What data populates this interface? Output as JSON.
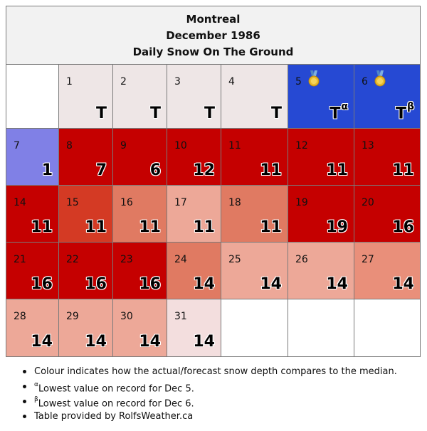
{
  "header": {
    "city": "Montreal",
    "month": "December 1986",
    "subtitle": "Daily Snow On The Ground"
  },
  "colors": {
    "record_low": "#2649d3",
    "below_median_slight": "#8080e6",
    "far_above": "#c50000",
    "above_1": "#d43a24",
    "above_2": "#e07a62",
    "above_3": "#e98f7a",
    "above_4": "#eda898",
    "near_median": "#eee6e6",
    "faint": "#f3dede",
    "empty": "#ffffff"
  },
  "days": [
    {
      "day": "1",
      "value": "T",
      "sup": "",
      "medal": false,
      "color": "#eee6e6"
    },
    {
      "day": "2",
      "value": "T",
      "sup": "",
      "medal": false,
      "color": "#eee6e6"
    },
    {
      "day": "3",
      "value": "T",
      "sup": "",
      "medal": false,
      "color": "#eee6e6"
    },
    {
      "day": "4",
      "value": "T",
      "sup": "",
      "medal": false,
      "color": "#eee6e6"
    },
    {
      "day": "5",
      "value": "T",
      "sup": "α",
      "medal": true,
      "color": "#2649d3"
    },
    {
      "day": "6",
      "value": "T",
      "sup": "β",
      "medal": true,
      "color": "#2649d3"
    },
    {
      "day": "7",
      "value": "1",
      "sup": "",
      "medal": false,
      "color": "#8080e6"
    },
    {
      "day": "8",
      "value": "7",
      "sup": "",
      "medal": false,
      "color": "#c50000"
    },
    {
      "day": "9",
      "value": "6",
      "sup": "",
      "medal": false,
      "color": "#c50000"
    },
    {
      "day": "10",
      "value": "12",
      "sup": "",
      "medal": false,
      "color": "#c50000"
    },
    {
      "day": "11",
      "value": "11",
      "sup": "",
      "medal": false,
      "color": "#c50000"
    },
    {
      "day": "12",
      "value": "11",
      "sup": "",
      "medal": false,
      "color": "#c50000"
    },
    {
      "day": "13",
      "value": "11",
      "sup": "",
      "medal": false,
      "color": "#c50000"
    },
    {
      "day": "14",
      "value": "11",
      "sup": "",
      "medal": false,
      "color": "#c50000"
    },
    {
      "day": "15",
      "value": "11",
      "sup": "",
      "medal": false,
      "color": "#d43a24"
    },
    {
      "day": "16",
      "value": "11",
      "sup": "",
      "medal": false,
      "color": "#e07a62"
    },
    {
      "day": "17",
      "value": "11",
      "sup": "",
      "medal": false,
      "color": "#eda898"
    },
    {
      "day": "18",
      "value": "11",
      "sup": "",
      "medal": false,
      "color": "#e07a62"
    },
    {
      "day": "19",
      "value": "19",
      "sup": "",
      "medal": false,
      "color": "#c50000"
    },
    {
      "day": "20",
      "value": "16",
      "sup": "",
      "medal": false,
      "color": "#c50000"
    },
    {
      "day": "21",
      "value": "16",
      "sup": "",
      "medal": false,
      "color": "#c50000"
    },
    {
      "day": "22",
      "value": "16",
      "sup": "",
      "medal": false,
      "color": "#c50000"
    },
    {
      "day": "23",
      "value": "16",
      "sup": "",
      "medal": false,
      "color": "#c50000"
    },
    {
      "day": "24",
      "value": "14",
      "sup": "",
      "medal": false,
      "color": "#e07a62"
    },
    {
      "day": "25",
      "value": "14",
      "sup": "",
      "medal": false,
      "color": "#eda898"
    },
    {
      "day": "26",
      "value": "14",
      "sup": "",
      "medal": false,
      "color": "#eda898"
    },
    {
      "day": "27",
      "value": "14",
      "sup": "",
      "medal": false,
      "color": "#e98f7a"
    },
    {
      "day": "28",
      "value": "14",
      "sup": "",
      "medal": false,
      "color": "#eda898"
    },
    {
      "day": "29",
      "value": "14",
      "sup": "",
      "medal": false,
      "color": "#eda898"
    },
    {
      "day": "30",
      "value": "14",
      "sup": "",
      "medal": false,
      "color": "#eda898"
    },
    {
      "day": "31",
      "value": "14",
      "sup": "",
      "medal": false,
      "color": "#f3dede"
    }
  ],
  "notes": [
    {
      "marker": "",
      "text": "Colour indicates how the actual/forecast snow depth compares to the median."
    },
    {
      "marker": "α",
      "text": "Lowest value on record for Dec 5."
    },
    {
      "marker": "β",
      "text": "Lowest value on record for Dec 6."
    },
    {
      "marker": "",
      "text": "Table provided by RolfsWeather.ca"
    }
  ]
}
